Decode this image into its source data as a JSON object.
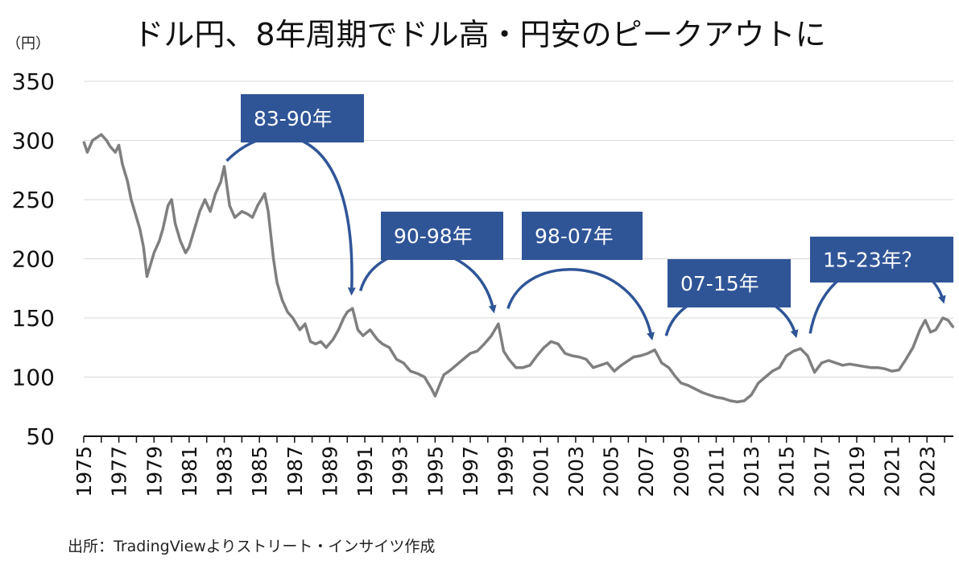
{
  "chart_data": {
    "type": "line",
    "title": "ドル円、8年周期でドル高・円安のピークアウトに",
    "y_unit_label": "（円）",
    "ylim": [
      50,
      350
    ],
    "y_ticks": [
      50,
      100,
      150,
      200,
      250,
      300,
      350
    ],
    "xlim": [
      1975,
      2024.5
    ],
    "x_tick_labels": [
      "1975",
      "1977",
      "1979",
      "1981",
      "1983",
      "1985",
      "1987",
      "1989",
      "1991",
      "1993",
      "1995",
      "1997",
      "1999",
      "2001",
      "2003",
      "2005",
      "2007",
      "2009",
      "2011",
      "2013",
      "2015",
      "2017",
      "2019",
      "2021",
      "2023"
    ],
    "grid": "horizontal",
    "line_color": "#7f7f7f",
    "annotation_color": "#2f5597",
    "series": [
      {
        "x": [
          1975.0,
          1975.2,
          1975.5,
          1975.8,
          1976.0,
          1976.3,
          1976.5,
          1976.8,
          1977.0,
          1977.2,
          1977.5,
          1977.7,
          1977.9,
          1978.2,
          1978.4,
          1978.6,
          1978.8,
          1979.0,
          1979.3,
          1979.5,
          1979.8,
          1980.0,
          1980.2,
          1980.5,
          1980.8,
          1981.0,
          1981.3,
          1981.6,
          1981.9,
          1982.2,
          1982.5,
          1982.8,
          1983.0,
          1983.3,
          1983.6,
          1984.0,
          1984.3,
          1984.6,
          1984.9,
          1985.1,
          1985.3,
          1985.5,
          1985.8,
          1986.0,
          1986.3,
          1986.6,
          1986.9,
          1987.3,
          1987.6,
          1987.9,
          1988.2,
          1988.5,
          1988.8,
          1989.2,
          1989.5,
          1989.8,
          1990.0,
          1990.3,
          1990.6,
          1990.9,
          1991.3,
          1991.7,
          1992.0,
          1992.4,
          1992.8,
          1993.2,
          1993.6,
          1994.0,
          1994.4,
          1994.8,
          1995.0,
          1995.3,
          1995.5,
          1995.8,
          1996.2,
          1996.6,
          1997.0,
          1997.4,
          1997.8,
          1998.2,
          1998.6,
          1998.9,
          1999.2,
          1999.6,
          2000.0,
          2000.4,
          2000.8,
          2001.2,
          2001.6,
          2002.0,
          2002.4,
          2002.8,
          2003.2,
          2003.6,
          2004.0,
          2004.4,
          2004.8,
          2005.2,
          2005.6,
          2005.9,
          2006.3,
          2006.7,
          2007.1,
          2007.5,
          2007.9,
          2008.3,
          2008.7,
          2009.0,
          2009.4,
          2009.8,
          2010.2,
          2010.6,
          2011.0,
          2011.4,
          2011.8,
          2012.2,
          2012.6,
          2013.0,
          2013.4,
          2013.8,
          2014.2,
          2014.6,
          2015.0,
          2015.4,
          2015.8,
          2016.2,
          2016.6,
          2017.0,
          2017.4,
          2017.8,
          2018.2,
          2018.6,
          2019.0,
          2019.4,
          2019.8,
          2020.2,
          2020.6,
          2021.0,
          2021.4,
          2021.8,
          2022.2,
          2022.6,
          2022.9,
          2023.2,
          2023.5,
          2023.9,
          2024.2,
          2024.5
        ],
        "values": [
          299,
          290,
          300,
          303,
          305,
          300,
          295,
          290,
          296,
          280,
          265,
          250,
          240,
          225,
          210,
          185,
          195,
          205,
          215,
          225,
          245,
          250,
          230,
          215,
          205,
          210,
          225,
          240,
          250,
          240,
          255,
          265,
          278,
          245,
          235,
          240,
          238,
          235,
          245,
          250,
          255,
          240,
          200,
          180,
          165,
          155,
          150,
          140,
          145,
          130,
          128,
          130,
          125,
          132,
          140,
          150,
          155,
          158,
          140,
          135,
          140,
          132,
          128,
          125,
          115,
          112,
          105,
          103,
          100,
          90,
          84,
          95,
          102,
          105,
          110,
          115,
          120,
          122,
          128,
          135,
          145,
          122,
          115,
          108,
          108,
          110,
          118,
          125,
          130,
          128,
          120,
          118,
          117,
          115,
          108,
          110,
          112,
          105,
          110,
          113,
          117,
          118,
          120,
          123,
          112,
          108,
          100,
          95,
          93,
          90,
          87,
          85,
          83,
          82,
          80,
          79,
          80,
          85,
          95,
          100,
          105,
          108,
          118,
          122,
          124,
          118,
          104,
          112,
          114,
          112,
          110,
          111,
          110,
          109,
          108,
          108,
          107,
          105,
          106,
          115,
          125,
          140,
          148,
          138,
          140,
          150,
          148,
          142
        ]
      }
    ],
    "annotations": [
      {
        "label": "83-90年",
        "from": [
          1983.0,
          278
        ],
        "to": [
          1990.2,
          162
        ]
      },
      {
        "label": "90-98年",
        "from": [
          1990.2,
          162
        ],
        "to": [
          1998.6,
          147
        ]
      },
      {
        "label": "98-07年",
        "from": [
          1998.6,
          147
        ],
        "to": [
          2007.6,
          124
        ]
      },
      {
        "label": "07-15年",
        "from": [
          2007.6,
          124
        ],
        "to": [
          2015.8,
          126
        ]
      },
      {
        "label": "15-23年？",
        "from": [
          2015.8,
          126
        ],
        "to": [
          2024.2,
          155
        ]
      }
    ]
  },
  "source": "出所：TradingViewよりストリート・インサイツ作成"
}
